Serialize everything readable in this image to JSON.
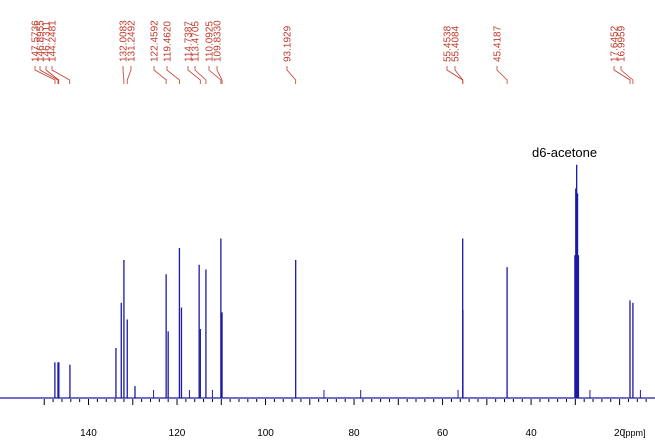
{
  "chart_data": {
    "type": "nmr_spectrum",
    "x_unit": "[ppm]",
    "xlim": [
      160,
      12
    ],
    "x_ticks": [
      140,
      120,
      100,
      80,
      60,
      40,
      20
    ],
    "peak_labels": [
      "147.5736",
      "146.8955",
      "146.7311",
      "144.2481",
      "132.0083",
      "131.2492",
      "122.4592",
      "119.4620",
      "114.7387",
      "113.4705",
      "110.0925",
      "109.8330",
      "93.1929",
      "55.4538",
      "55.4084",
      "45.4187",
      "17.6452",
      "16.9959"
    ],
    "peaks": [
      {
        "ppm": 147.6,
        "height": 0.15
      },
      {
        "ppm": 146.9,
        "height": 0.15
      },
      {
        "ppm": 146.7,
        "height": 0.15
      },
      {
        "ppm": 144.2,
        "height": 0.14
      },
      {
        "ppm": 133.8,
        "height": 0.21
      },
      {
        "ppm": 132.6,
        "height": 0.4
      },
      {
        "ppm": 132.0,
        "height": 0.58
      },
      {
        "ppm": 131.25,
        "height": 0.33
      },
      {
        "ppm": 129.5,
        "height": 0.05
      },
      {
        "ppm": 122.46,
        "height": 0.52
      },
      {
        "ppm": 122.0,
        "height": 0.28
      },
      {
        "ppm": 119.46,
        "height": 0.63
      },
      {
        "ppm": 119.0,
        "height": 0.38
      },
      {
        "ppm": 115.0,
        "height": 0.56
      },
      {
        "ppm": 114.74,
        "height": 0.29
      },
      {
        "ppm": 113.47,
        "height": 0.54
      },
      {
        "ppm": 110.09,
        "height": 0.67
      },
      {
        "ppm": 109.83,
        "height": 0.36
      },
      {
        "ppm": 93.19,
        "height": 0.58
      },
      {
        "ppm": 55.45,
        "height": 0.67
      },
      {
        "ppm": 55.41,
        "height": 0.37
      },
      {
        "ppm": 45.42,
        "height": 0.55
      },
      {
        "ppm": 30.1,
        "height": 0.6
      },
      {
        "ppm": 29.9,
        "height": 0.88
      },
      {
        "ppm": 29.7,
        "height": 0.98
      },
      {
        "ppm": 29.5,
        "height": 0.86
      },
      {
        "ppm": 29.3,
        "height": 0.6
      },
      {
        "ppm": 17.65,
        "height": 0.41
      },
      {
        "ppm": 16.99,
        "height": 0.4
      }
    ],
    "annotations": [
      "d6-acetone"
    ]
  },
  "colors": {
    "spectrum": "#1a1aa6",
    "peak_label": "#c0392b",
    "axis": "#000000"
  }
}
